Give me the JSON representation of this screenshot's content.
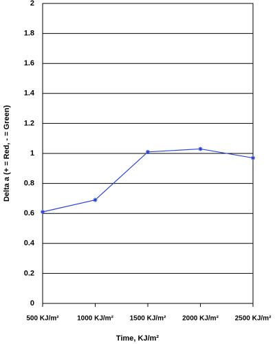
{
  "chart_data": {
    "type": "line",
    "x_label": "Time, KJ/m²",
    "y_label": "Delta a (+ = Red, - = Green)",
    "categories": [
      "500 KJ/m²",
      "1000 KJ/m²",
      "1500 KJ/m²",
      "2000 KJ/m²",
      "2500 KJ/m²"
    ],
    "values": [
      0.61,
      0.69,
      1.01,
      1.03,
      0.97
    ],
    "color": "#2a44d8",
    "ylim": [
      0,
      2
    ],
    "yticks": [
      0,
      0.2,
      0.4,
      0.6,
      0.8,
      1,
      1.2,
      1.4,
      1.6,
      1.8,
      2
    ],
    "grid": true
  }
}
